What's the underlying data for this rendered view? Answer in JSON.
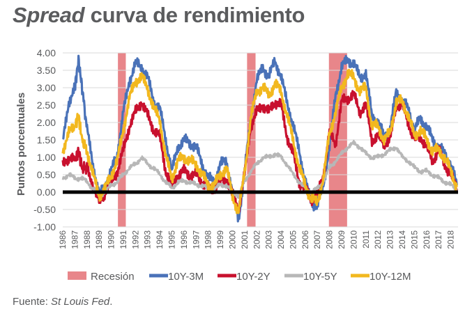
{
  "title": {
    "italic": "Spread",
    "rest": "curva de rendimiento"
  },
  "source": {
    "prefix": "Fuente:",
    "name": "St Louis Fed",
    "suffix": "."
  },
  "colors": {
    "recession": "#e8868a",
    "10Y-3M": "#4a72b8",
    "10Y-2Y": "#c8102e",
    "10Y-5Y": "#b7b7b7",
    "10Y-12M": "#f2b81f",
    "zero_line": "#000000",
    "grid": "#d9d9d9"
  },
  "chart_data": {
    "type": "line",
    "title": "Spread curva de rendimiento",
    "xlabel": "",
    "ylabel": "Puntos porcentuales",
    "xlim": [
      1986,
      2018.6
    ],
    "ylim": [
      -1.0,
      4.0
    ],
    "y_ticks": [
      "-1.00",
      "-0.50",
      "0.00",
      "0.50",
      "1.00",
      "1.50",
      "2.00",
      "2.50",
      "3.00",
      "3.50",
      "4.00"
    ],
    "x_ticks": [
      "1986",
      "1987",
      "1988",
      "1989",
      "1990",
      "1991",
      "1992",
      "1993",
      "1994",
      "1995",
      "1996",
      "1997",
      "1998",
      "1999",
      "2000",
      "2001",
      "2002",
      "2003",
      "2004",
      "2005",
      "2006",
      "2007",
      "2008",
      "2009",
      "2010",
      "2011",
      "2012",
      "2013",
      "2014",
      "2015",
      "2016",
      "2017",
      "2018"
    ],
    "grid": "horizontal",
    "legend_position": "bottom",
    "recessions": [
      {
        "label": "Recesión",
        "start": 1990.55,
        "end": 1991.2
      },
      {
        "label": "Recesión",
        "start": 2001.2,
        "end": 2001.9
      },
      {
        "label": "Recesión",
        "start": 2007.95,
        "end": 2009.45
      }
    ],
    "series": [
      {
        "name": "10Y-3M",
        "color": "#4a72b8",
        "x": [
          1986.0,
          1986.5,
          1987.0,
          1987.3,
          1987.6,
          1988.0,
          1988.5,
          1989.0,
          1989.5,
          1990.0,
          1990.5,
          1991.0,
          1991.5,
          1992.0,
          1992.5,
          1993.0,
          1993.5,
          1994.0,
          1994.5,
          1995.0,
          1995.5,
          1996.0,
          1996.5,
          1997.0,
          1997.5,
          1998.0,
          1998.5,
          1999.0,
          1999.5,
          2000.0,
          2000.5,
          2001.0,
          2001.5,
          2002.0,
          2002.5,
          2003.0,
          2003.5,
          2004.0,
          2004.5,
          2005.0,
          2005.5,
          2006.0,
          2006.5,
          2007.0,
          2007.5,
          2008.0,
          2008.5,
          2009.0,
          2009.5,
          2010.0,
          2010.5,
          2011.0,
          2011.5,
          2012.0,
          2012.5,
          2013.0,
          2013.5,
          2014.0,
          2014.5,
          2015.0,
          2015.5,
          2016.0,
          2016.5,
          2017.0,
          2017.5,
          2018.0,
          2018.5
        ],
        "values": [
          1.4,
          2.6,
          3.0,
          3.8,
          3.0,
          1.8,
          0.8,
          -0.1,
          0.2,
          0.6,
          1.1,
          2.3,
          3.2,
          3.7,
          3.6,
          3.3,
          2.6,
          2.4,
          1.5,
          0.6,
          1.3,
          1.5,
          1.4,
          1.3,
          0.8,
          0.4,
          0.3,
          0.8,
          0.9,
          0.0,
          -0.8,
          0.6,
          2.1,
          3.2,
          3.6,
          3.3,
          3.8,
          3.3,
          2.6,
          1.9,
          1.2,
          0.3,
          -0.3,
          -0.4,
          0.2,
          1.3,
          2.8,
          3.6,
          3.8,
          3.7,
          3.3,
          3.4,
          2.2,
          2.0,
          1.6,
          1.8,
          2.9,
          2.6,
          2.4,
          1.8,
          2.1,
          1.9,
          1.5,
          1.3,
          1.1,
          0.8,
          0.2
        ]
      },
      {
        "name": "10Y-2Y",
        "color": "#c8102e",
        "x": [
          1986.0,
          1986.5,
          1987.0,
          1987.3,
          1987.6,
          1988.0,
          1988.5,
          1989.0,
          1989.5,
          1990.0,
          1990.5,
          1991.0,
          1991.5,
          1992.0,
          1992.5,
          1993.0,
          1993.5,
          1994.0,
          1994.5,
          1995.0,
          1995.5,
          1996.0,
          1996.5,
          1997.0,
          1997.5,
          1998.0,
          1998.5,
          1999.0,
          1999.5,
          2000.0,
          2000.5,
          2001.0,
          2001.5,
          2002.0,
          2002.5,
          2003.0,
          2003.5,
          2004.0,
          2004.5,
          2005.0,
          2005.5,
          2006.0,
          2006.5,
          2007.0,
          2007.5,
          2008.0,
          2008.5,
          2009.0,
          2009.5,
          2010.0,
          2010.5,
          2011.0,
          2011.5,
          2012.0,
          2012.5,
          2013.0,
          2013.5,
          2014.0,
          2014.5,
          2015.0,
          2015.5,
          2016.0,
          2016.5,
          2017.0,
          2017.5,
          2018.0,
          2018.5
        ],
        "values": [
          0.8,
          1.0,
          0.9,
          1.2,
          0.7,
          0.7,
          0.2,
          -0.3,
          0.0,
          0.3,
          0.6,
          1.2,
          1.9,
          2.3,
          2.6,
          2.2,
          1.8,
          1.6,
          0.6,
          0.2,
          0.5,
          0.6,
          0.5,
          0.5,
          0.3,
          0.1,
          0.1,
          0.3,
          0.4,
          -0.1,
          -0.5,
          0.5,
          1.9,
          2.3,
          2.5,
          2.3,
          2.6,
          2.5,
          1.6,
          1.1,
          0.3,
          0.1,
          -0.2,
          -0.1,
          0.5,
          1.7,
          1.4,
          2.6,
          2.7,
          2.8,
          2.3,
          2.5,
          1.5,
          1.6,
          1.4,
          1.5,
          2.5,
          2.5,
          2.0,
          1.5,
          1.6,
          1.3,
          0.9,
          1.2,
          0.8,
          0.5,
          0.1
        ]
      },
      {
        "name": "10Y-5Y",
        "color": "#b7b7b7",
        "x": [
          1986.0,
          1986.5,
          1987.0,
          1987.5,
          1988.0,
          1988.5,
          1989.0,
          1989.5,
          1990.0,
          1990.5,
          1991.0,
          1991.5,
          1992.0,
          1992.5,
          1993.0,
          1993.5,
          1994.0,
          1994.5,
          1995.0,
          1995.5,
          1996.0,
          1996.5,
          1997.0,
          1997.5,
          1998.0,
          1998.5,
          1999.0,
          1999.5,
          2000.0,
          2000.5,
          2001.0,
          2001.5,
          2002.0,
          2002.5,
          2003.0,
          2003.5,
          2004.0,
          2004.5,
          2005.0,
          2005.5,
          2006.0,
          2006.5,
          2007.0,
          2007.5,
          2008.0,
          2008.5,
          2009.0,
          2009.5,
          2010.0,
          2010.5,
          2011.0,
          2011.5,
          2012.0,
          2012.5,
          2013.0,
          2013.5,
          2014.0,
          2014.5,
          2015.0,
          2015.5,
          2016.0,
          2016.5,
          2017.0,
          2017.5,
          2018.0,
          2018.5
        ],
        "values": [
          0.4,
          0.5,
          0.4,
          0.4,
          0.3,
          0.1,
          -0.1,
          0.0,
          0.2,
          0.3,
          0.5,
          0.7,
          0.8,
          1.0,
          0.8,
          0.7,
          0.5,
          0.3,
          0.1,
          0.3,
          0.3,
          0.3,
          0.2,
          0.2,
          0.1,
          0.1,
          0.2,
          0.2,
          0.0,
          -0.1,
          0.3,
          0.6,
          0.8,
          1.0,
          1.0,
          1.1,
          1.0,
          0.8,
          0.5,
          0.3,
          0.1,
          0.0,
          0.1,
          0.3,
          0.7,
          0.9,
          1.1,
          1.3,
          1.4,
          1.3,
          1.1,
          1.0,
          1.0,
          1.1,
          1.2,
          1.3,
          1.0,
          0.9,
          0.7,
          0.6,
          0.6,
          0.5,
          0.4,
          0.3,
          0.2,
          0.1
        ]
      },
      {
        "name": "10Y-12M",
        "color": "#f2b81f",
        "x": [
          1986.0,
          1986.5,
          1987.0,
          1987.3,
          1987.6,
          1988.0,
          1988.5,
          1989.0,
          1989.5,
          1990.0,
          1990.5,
          1991.0,
          1991.5,
          1992.0,
          1992.5,
          1993.0,
          1993.5,
          1994.0,
          1994.5,
          1995.0,
          1995.5,
          1996.0,
          1996.5,
          1997.0,
          1997.5,
          1998.0,
          1998.5,
          1999.0,
          1999.5,
          2000.0,
          2000.5,
          2001.0,
          2001.5,
          2002.0,
          2002.5,
          2003.0,
          2003.5,
          2004.0,
          2004.5,
          2005.0,
          2005.5,
          2006.0,
          2006.5,
          2007.0,
          2007.5,
          2008.0,
          2008.5,
          2009.0,
          2009.5,
          2010.0,
          2010.5,
          2011.0,
          2011.5,
          2012.0,
          2012.5,
          2013.0,
          2013.5,
          2014.0,
          2014.5,
          2015.0,
          2015.5,
          2016.0,
          2016.5,
          2017.0,
          2017.5,
          2018.0,
          2018.5
        ],
        "values": [
          1.2,
          1.7,
          1.9,
          2.2,
          1.5,
          1.2,
          0.5,
          -0.1,
          0.1,
          0.5,
          0.9,
          1.8,
          2.7,
          3.2,
          3.3,
          3.0,
          2.4,
          2.1,
          1.0,
          0.4,
          0.9,
          1.0,
          0.9,
          0.8,
          0.5,
          0.2,
          0.2,
          0.5,
          0.7,
          -0.1,
          -0.6,
          0.6,
          2.1,
          2.9,
          3.0,
          2.8,
          3.1,
          2.9,
          2.2,
          1.5,
          0.7,
          0.2,
          -0.2,
          -0.3,
          0.4,
          1.7,
          2.3,
          3.0,
          3.4,
          3.3,
          2.9,
          3.0,
          1.9,
          1.9,
          1.5,
          1.7,
          2.6,
          2.6,
          2.2,
          1.6,
          1.8,
          1.5,
          1.2,
          1.2,
          1.0,
          0.6,
          0.15
        ]
      }
    ]
  }
}
